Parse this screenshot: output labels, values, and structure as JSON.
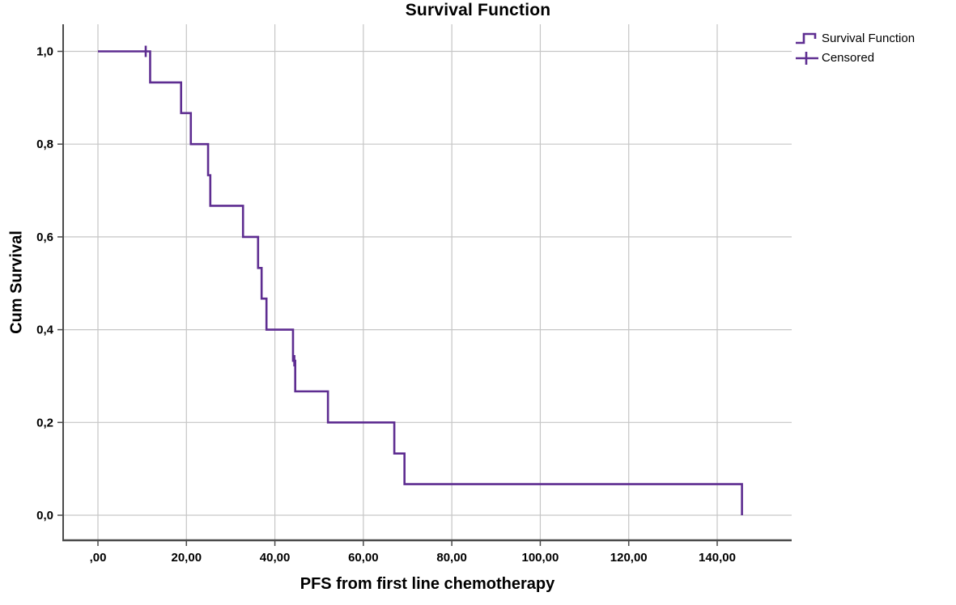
{
  "figure": {
    "title": "Survival Function",
    "xlabel": "PFS from first line chemotherapy",
    "ylabel": "Cum Survival",
    "legend": [
      {
        "icon": "step-line-icon",
        "label": "Survival Function"
      },
      {
        "icon": "plus-icon",
        "label": "Censored"
      }
    ],
    "colors": {
      "curve": "#5E2D91",
      "grid": "#c6c6c6",
      "axis": "#4a4a4a",
      "text": "#000000",
      "background": "#ffffff"
    }
  },
  "chart_data": {
    "type": "line",
    "subtype": "kaplan-meier-step",
    "title": "Survival Function",
    "xlabel": "PFS from first line chemotherapy",
    "ylabel": "Cum Survival",
    "grid": true,
    "legend_position": "top-right",
    "xlim": [
      -7.9,
      156.8
    ],
    "ylim": [
      -0.054,
      1.058
    ],
    "xticks": [
      {
        "value": 0,
        "label": ",00"
      },
      {
        "value": 20,
        "label": "20,00"
      },
      {
        "value": 40,
        "label": "40,00"
      },
      {
        "value": 60,
        "label": "60,00"
      },
      {
        "value": 80,
        "label": "80,00"
      },
      {
        "value": 100,
        "label": "100,00"
      },
      {
        "value": 120,
        "label": "120,00"
      },
      {
        "value": 140,
        "label": "140,00"
      }
    ],
    "yticks": [
      {
        "value": 1.0,
        "label": "1,0"
      },
      {
        "value": 0.8,
        "label": "0,8"
      },
      {
        "value": 0.6,
        "label": "0,6"
      },
      {
        "value": 0.4,
        "label": "0,4"
      },
      {
        "value": 0.2,
        "label": "0,2"
      },
      {
        "value": 0.0,
        "label": "0,0"
      }
    ],
    "series": [
      {
        "name": "Survival Function",
        "start": {
          "time": 0,
          "survival": 1.0
        },
        "steps": [
          {
            "time": 11.8,
            "survival": 0.933
          },
          {
            "time": 18.8,
            "survival": 0.867
          },
          {
            "time": 21.0,
            "survival": 0.8
          },
          {
            "time": 24.9,
            "survival": 0.733
          },
          {
            "time": 25.4,
            "survival": 0.667
          },
          {
            "time": 32.8,
            "survival": 0.6
          },
          {
            "time": 36.2,
            "survival": 0.533
          },
          {
            "time": 37.0,
            "survival": 0.467
          },
          {
            "time": 38.1,
            "survival": 0.4
          },
          {
            "time": 44.1,
            "survival": 0.333
          },
          {
            "time": 44.6,
            "survival": 0.267
          },
          {
            "time": 52.0,
            "survival": 0.2
          },
          {
            "time": 67.0,
            "survival": 0.133
          },
          {
            "time": 69.3,
            "survival": 0.067
          },
          {
            "time": 145.6,
            "survival": 0.0
          }
        ]
      }
    ],
    "censored": [
      {
        "time": 10.8,
        "survival": 1.0
      },
      {
        "time": 44.4,
        "survival": 0.333
      }
    ]
  }
}
